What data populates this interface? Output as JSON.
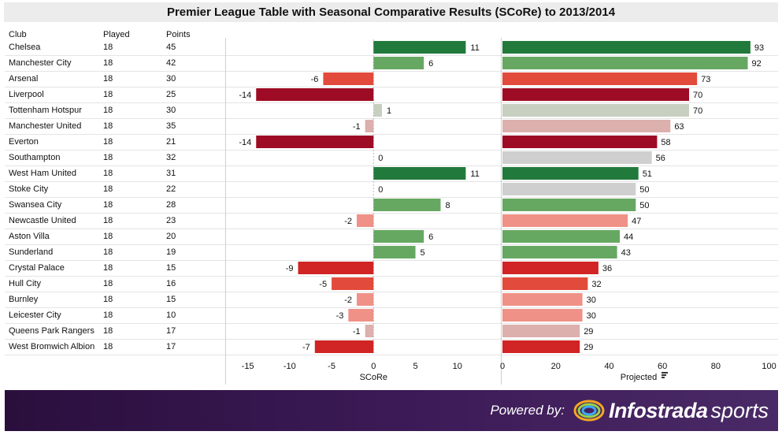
{
  "title": "Premier League Table with Seasonal Comparative Results (SCoRe) to 2013/2014",
  "columns": {
    "club": "Club",
    "played": "Played",
    "points": "Points"
  },
  "footer": {
    "powered_by": "Powered by:",
    "brand_bold": "Infostrada",
    "brand_light": "sports"
  },
  "colors": {
    "dark_green": "#217a3b",
    "light_green": "#66a861",
    "pale_green": "#c7cfc0",
    "grey": "#cfcfcf",
    "pale_red": "#dcb0ad",
    "salmon": "#ef9187",
    "light_red": "#e24a3b",
    "red": "#d12424",
    "dark_red": "#9e0b24"
  },
  "chart_data": [
    {
      "type": "bar",
      "orientation": "horizontal",
      "xlabel": "SCoRe",
      "xlim": [
        -17.5,
        15
      ],
      "ticks": [
        -15,
        -10,
        -5,
        0,
        5,
        10
      ],
      "categories": [
        "Chelsea",
        "Manchester City",
        "Arsenal",
        "Liverpool",
        "Tottenham Hotspur",
        "Manchester United",
        "Everton",
        "Southampton",
        "West Ham United",
        "Stoke City",
        "Swansea City",
        "Newcastle United",
        "Aston Villa",
        "Sunderland",
        "Crystal Palace",
        "Hull City",
        "Burnley",
        "Leicester City",
        "Queens Park Rangers",
        "West Bromwich Albion"
      ],
      "values": [
        11,
        6,
        -6,
        -14,
        1,
        -1,
        -14,
        0,
        11,
        0,
        8,
        -2,
        6,
        5,
        -9,
        -5,
        -2,
        -3,
        -1,
        -7
      ]
    },
    {
      "type": "bar",
      "orientation": "horizontal",
      "xlabel": "Projected",
      "xlim": [
        0,
        101
      ],
      "ticks": [
        0,
        20,
        40,
        60,
        80,
        100
      ],
      "categories": [
        "Chelsea",
        "Manchester City",
        "Arsenal",
        "Liverpool",
        "Tottenham Hotspur",
        "Manchester United",
        "Everton",
        "Southampton",
        "West Ham United",
        "Stoke City",
        "Swansea City",
        "Newcastle United",
        "Aston Villa",
        "Sunderland",
        "Crystal Palace",
        "Hull City",
        "Burnley",
        "Leicester City",
        "Queens Park Rangers",
        "West Bromwich Albion"
      ],
      "values": [
        93,
        92,
        73,
        70,
        70,
        63,
        58,
        56,
        51,
        50,
        50,
        47,
        44,
        43,
        36,
        32,
        30,
        30,
        29,
        29
      ]
    }
  ],
  "table": {
    "rows": [
      {
        "club": "Chelsea",
        "played": "18",
        "points": "45"
      },
      {
        "club": "Manchester City",
        "played": "18",
        "points": "42"
      },
      {
        "club": "Arsenal",
        "played": "18",
        "points": "30"
      },
      {
        "club": "Liverpool",
        "played": "18",
        "points": "25"
      },
      {
        "club": "Tottenham Hotspur",
        "played": "18",
        "points": "30"
      },
      {
        "club": "Manchester United",
        "played": "18",
        "points": "35"
      },
      {
        "club": "Everton",
        "played": "18",
        "points": "21"
      },
      {
        "club": "Southampton",
        "played": "18",
        "points": "32"
      },
      {
        "club": "West Ham United",
        "played": "18",
        "points": "31"
      },
      {
        "club": "Stoke City",
        "played": "18",
        "points": "22"
      },
      {
        "club": "Swansea City",
        "played": "18",
        "points": "28"
      },
      {
        "club": "Newcastle United",
        "played": "18",
        "points": "23"
      },
      {
        "club": "Aston Villa",
        "played": "18",
        "points": "20"
      },
      {
        "club": "Sunderland",
        "played": "18",
        "points": "19"
      },
      {
        "club": "Crystal Palace",
        "played": "18",
        "points": "15"
      },
      {
        "club": "Hull City",
        "played": "18",
        "points": "16"
      },
      {
        "club": "Burnley",
        "played": "18",
        "points": "15"
      },
      {
        "club": "Leicester City",
        "played": "18",
        "points": "10"
      },
      {
        "club": "Queens Park Rangers",
        "played": "18",
        "points": "17"
      },
      {
        "club": "West Bromwich Albion",
        "played": "18",
        "points": "17"
      }
    ]
  }
}
